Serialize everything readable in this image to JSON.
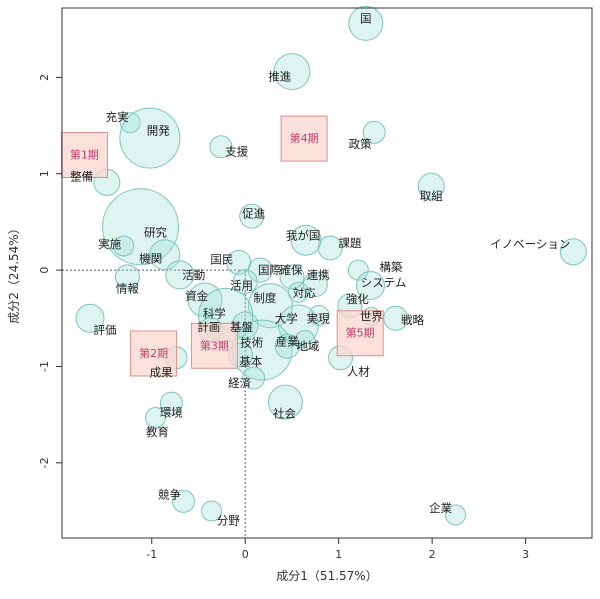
{
  "chart_data": {
    "type": "scatter",
    "title": "",
    "xlabel": "成分1（51.57%）",
    "ylabel": "成分2（24.54%）",
    "xlim": [
      -1.96,
      3.71
    ],
    "ylim": [
      -2.78,
      2.72
    ],
    "xticks": [
      -1,
      0,
      1,
      2,
      3
    ],
    "yticks": [
      -2,
      -1,
      0,
      1,
      2
    ],
    "reference_lines": {
      "x": 0,
      "y": 0,
      "style": "dotted"
    },
    "colors": {
      "bubble_fill": "#9ee0d8",
      "bubble_stroke": "#7fc4bb",
      "period_fill": "#f9d6cf",
      "period_stroke": "#d9928a",
      "period_text": "#c0406a",
      "text": "#222222"
    },
    "points": [
      {
        "word": "国",
        "x": 1.29,
        "y": 2.56,
        "weight": 1.7,
        "lx": 1.29,
        "ly": 2.61
      },
      {
        "word": "推進",
        "x": 0.5,
        "y": 2.06,
        "weight": 1.8,
        "lx": 0.37,
        "ly": 2.01
      },
      {
        "word": "充実",
        "x": -1.23,
        "y": 1.53,
        "weight": 1.0,
        "lx": -1.37,
        "ly": 1.59
      },
      {
        "word": "開発",
        "x": -1.02,
        "y": 1.37,
        "weight": 3.0,
        "lx": -0.93,
        "ly": 1.45
      },
      {
        "word": "支援",
        "x": -0.26,
        "y": 1.28,
        "weight": 1.1,
        "lx": -0.09,
        "ly": 1.23
      },
      {
        "word": "政策",
        "x": 1.38,
        "y": 1.43,
        "weight": 1.1,
        "lx": 1.23,
        "ly": 1.31
      },
      {
        "word": "整備",
        "x": -1.48,
        "y": 0.91,
        "weight": 1.3,
        "lx": -1.75,
        "ly": 0.97
      },
      {
        "word": "取組",
        "x": 1.99,
        "y": 0.87,
        "weight": 1.3,
        "lx": 1.99,
        "ly": 0.77
      },
      {
        "word": "促進",
        "x": 0.07,
        "y": 0.56,
        "weight": 1.2,
        "lx": 0.09,
        "ly": 0.59
      },
      {
        "word": "研究",
        "x": -1.12,
        "y": 0.45,
        "weight": 3.8,
        "lx": -0.96,
        "ly": 0.39
      },
      {
        "word": "我が国",
        "x": 0.65,
        "y": 0.31,
        "weight": 1.5,
        "lx": 0.62,
        "ly": 0.36
      },
      {
        "word": "課題",
        "x": 0.91,
        "y": 0.23,
        "weight": 1.2,
        "lx": 1.12,
        "ly": 0.28
      },
      {
        "word": "実施",
        "x": -1.3,
        "y": 0.25,
        "weight": 1.0,
        "lx": -1.45,
        "ly": 0.27
      },
      {
        "word": "機関",
        "x": -0.86,
        "y": 0.16,
        "weight": 1.5,
        "lx": -1.01,
        "ly": 0.12
      },
      {
        "word": "イノベーション",
        "x": 3.51,
        "y": 0.19,
        "weight": 1.3,
        "lx": 3.05,
        "ly": 0.27
      },
      {
        "word": "国民",
        "x": -0.07,
        "y": 0.08,
        "weight": 1.2,
        "lx": -0.25,
        "ly": 0.11
      },
      {
        "word": "活動",
        "x": -0.7,
        "y": -0.05,
        "weight": 1.4,
        "lx": -0.55,
        "ly": -0.05
      },
      {
        "word": "情報",
        "x": -1.26,
        "y": -0.07,
        "weight": 1.2,
        "lx": -1.26,
        "ly": -0.19
      },
      {
        "word": "資金",
        "x": -0.43,
        "y": -0.31,
        "weight": 1.7,
        "lx": -0.52,
        "ly": -0.27
      },
      {
        "word": "国際",
        "x": 0.16,
        "y": 0.0,
        "weight": 1.2,
        "lx": 0.26,
        "ly": 0.0
      },
      {
        "word": "確保",
        "x": 0.5,
        "y": -0.07,
        "weight": 1.2,
        "lx": 0.49,
        "ly": 0.0
      },
      {
        "word": "連携",
        "x": 0.75,
        "y": -0.15,
        "weight": 1.2,
        "lx": 0.78,
        "ly": -0.05
      },
      {
        "word": "対応",
        "x": 0.57,
        "y": -0.23,
        "weight": 1.0,
        "lx": 0.63,
        "ly": -0.24
      },
      {
        "word": "制度",
        "x": 0.27,
        "y": -0.37,
        "weight": 2.2,
        "lx": 0.21,
        "ly": -0.29
      },
      {
        "word": "活用",
        "x": 0.0,
        "y": -0.12,
        "weight": 1.2,
        "lx": -0.04,
        "ly": -0.16
      },
      {
        "word": "構築",
        "x": 1.21,
        "y": 0.0,
        "weight": 1.0,
        "lx": 1.56,
        "ly": 0.03
      },
      {
        "word": "システム",
        "x": 1.34,
        "y": -0.16,
        "weight": 1.4,
        "lx": 1.48,
        "ly": -0.13
      },
      {
        "word": "強化",
        "x": 1.12,
        "y": -0.37,
        "weight": 1.2,
        "lx": 1.2,
        "ly": -0.3
      },
      {
        "word": "世界",
        "x": 1.35,
        "y": -0.48,
        "weight": 0.9,
        "lx": 1.35,
        "ly": -0.48
      },
      {
        "word": "戦略",
        "x": 1.61,
        "y": -0.5,
        "weight": 1.2,
        "lx": 1.79,
        "ly": -0.52
      },
      {
        "word": "評価",
        "x": -1.66,
        "y": -0.5,
        "weight": 1.4,
        "lx": -1.5,
        "ly": -0.62
      },
      {
        "word": "科学",
        "x": -0.21,
        "y": -0.47,
        "weight": 2.7,
        "lx": -0.33,
        "ly": -0.45
      },
      {
        "word": "大学",
        "x": 0.57,
        "y": -0.57,
        "weight": 2.0,
        "lx": 0.44,
        "ly": -0.5
      },
      {
        "word": "実現",
        "x": 0.79,
        "y": -0.47,
        "weight": 1.0,
        "lx": 0.78,
        "ly": -0.5
      },
      {
        "word": "計画",
        "x": -0.37,
        "y": -0.62,
        "weight": 1.2,
        "lx": -0.39,
        "ly": -0.59
      },
      {
        "word": "基盤",
        "x": 0.0,
        "y": -0.57,
        "weight": 1.3,
        "lx": -0.04,
        "ly": -0.59
      },
      {
        "word": "技術",
        "x": 0.18,
        "y": -0.83,
        "weight": 3.0,
        "lx": 0.07,
        "ly": -0.75
      },
      {
        "word": "産業",
        "x": 0.45,
        "y": -0.79,
        "weight": 1.2,
        "lx": 0.45,
        "ly": -0.74
      },
      {
        "word": "地域",
        "x": 0.64,
        "y": -0.73,
        "weight": 1.0,
        "lx": 0.67,
        "ly": -0.79
      },
      {
        "word": "基本",
        "x": -0.05,
        "y": -0.88,
        "weight": 1.2,
        "lx": 0.06,
        "ly": -0.95
      },
      {
        "word": "成果",
        "x": -0.74,
        "y": -0.91,
        "weight": 1.1,
        "lx": -0.9,
        "ly": -1.06
      },
      {
        "word": "人材",
        "x": 1.02,
        "y": -0.91,
        "weight": 1.2,
        "lx": 1.21,
        "ly": -1.05
      },
      {
        "word": "経済",
        "x": 0.09,
        "y": -1.12,
        "weight": 1.1,
        "lx": -0.06,
        "ly": -1.17
      },
      {
        "word": "社会",
        "x": 0.43,
        "y": -1.37,
        "weight": 1.7,
        "lx": 0.42,
        "ly": -1.49
      },
      {
        "word": "環境",
        "x": -0.79,
        "y": -1.38,
        "weight": 1.1,
        "lx": -0.79,
        "ly": -1.48
      },
      {
        "word": "教育",
        "x": -0.96,
        "y": -1.53,
        "weight": 1.0,
        "lx": -0.94,
        "ly": -1.68
      },
      {
        "word": "競争",
        "x": -0.66,
        "y": -2.4,
        "weight": 1.1,
        "lx": -0.81,
        "ly": -2.33
      },
      {
        "word": "分野",
        "x": -0.36,
        "y": -2.5,
        "weight": 1.0,
        "lx": -0.18,
        "ly": -2.6
      },
      {
        "word": "企業",
        "x": 2.25,
        "y": -2.54,
        "weight": 1.0,
        "lx": 2.09,
        "ly": -2.47
      }
    ],
    "periods": [
      {
        "label": "第1期",
        "x": -1.72,
        "y": 1.2
      },
      {
        "label": "第2期",
        "x": -0.98,
        "y": -0.86
      },
      {
        "label": "第3期",
        "x": -0.33,
        "y": -0.78
      },
      {
        "label": "第4期",
        "x": 0.63,
        "y": 1.37
      },
      {
        "label": "第5期",
        "x": 1.23,
        "y": -0.65
      }
    ]
  }
}
